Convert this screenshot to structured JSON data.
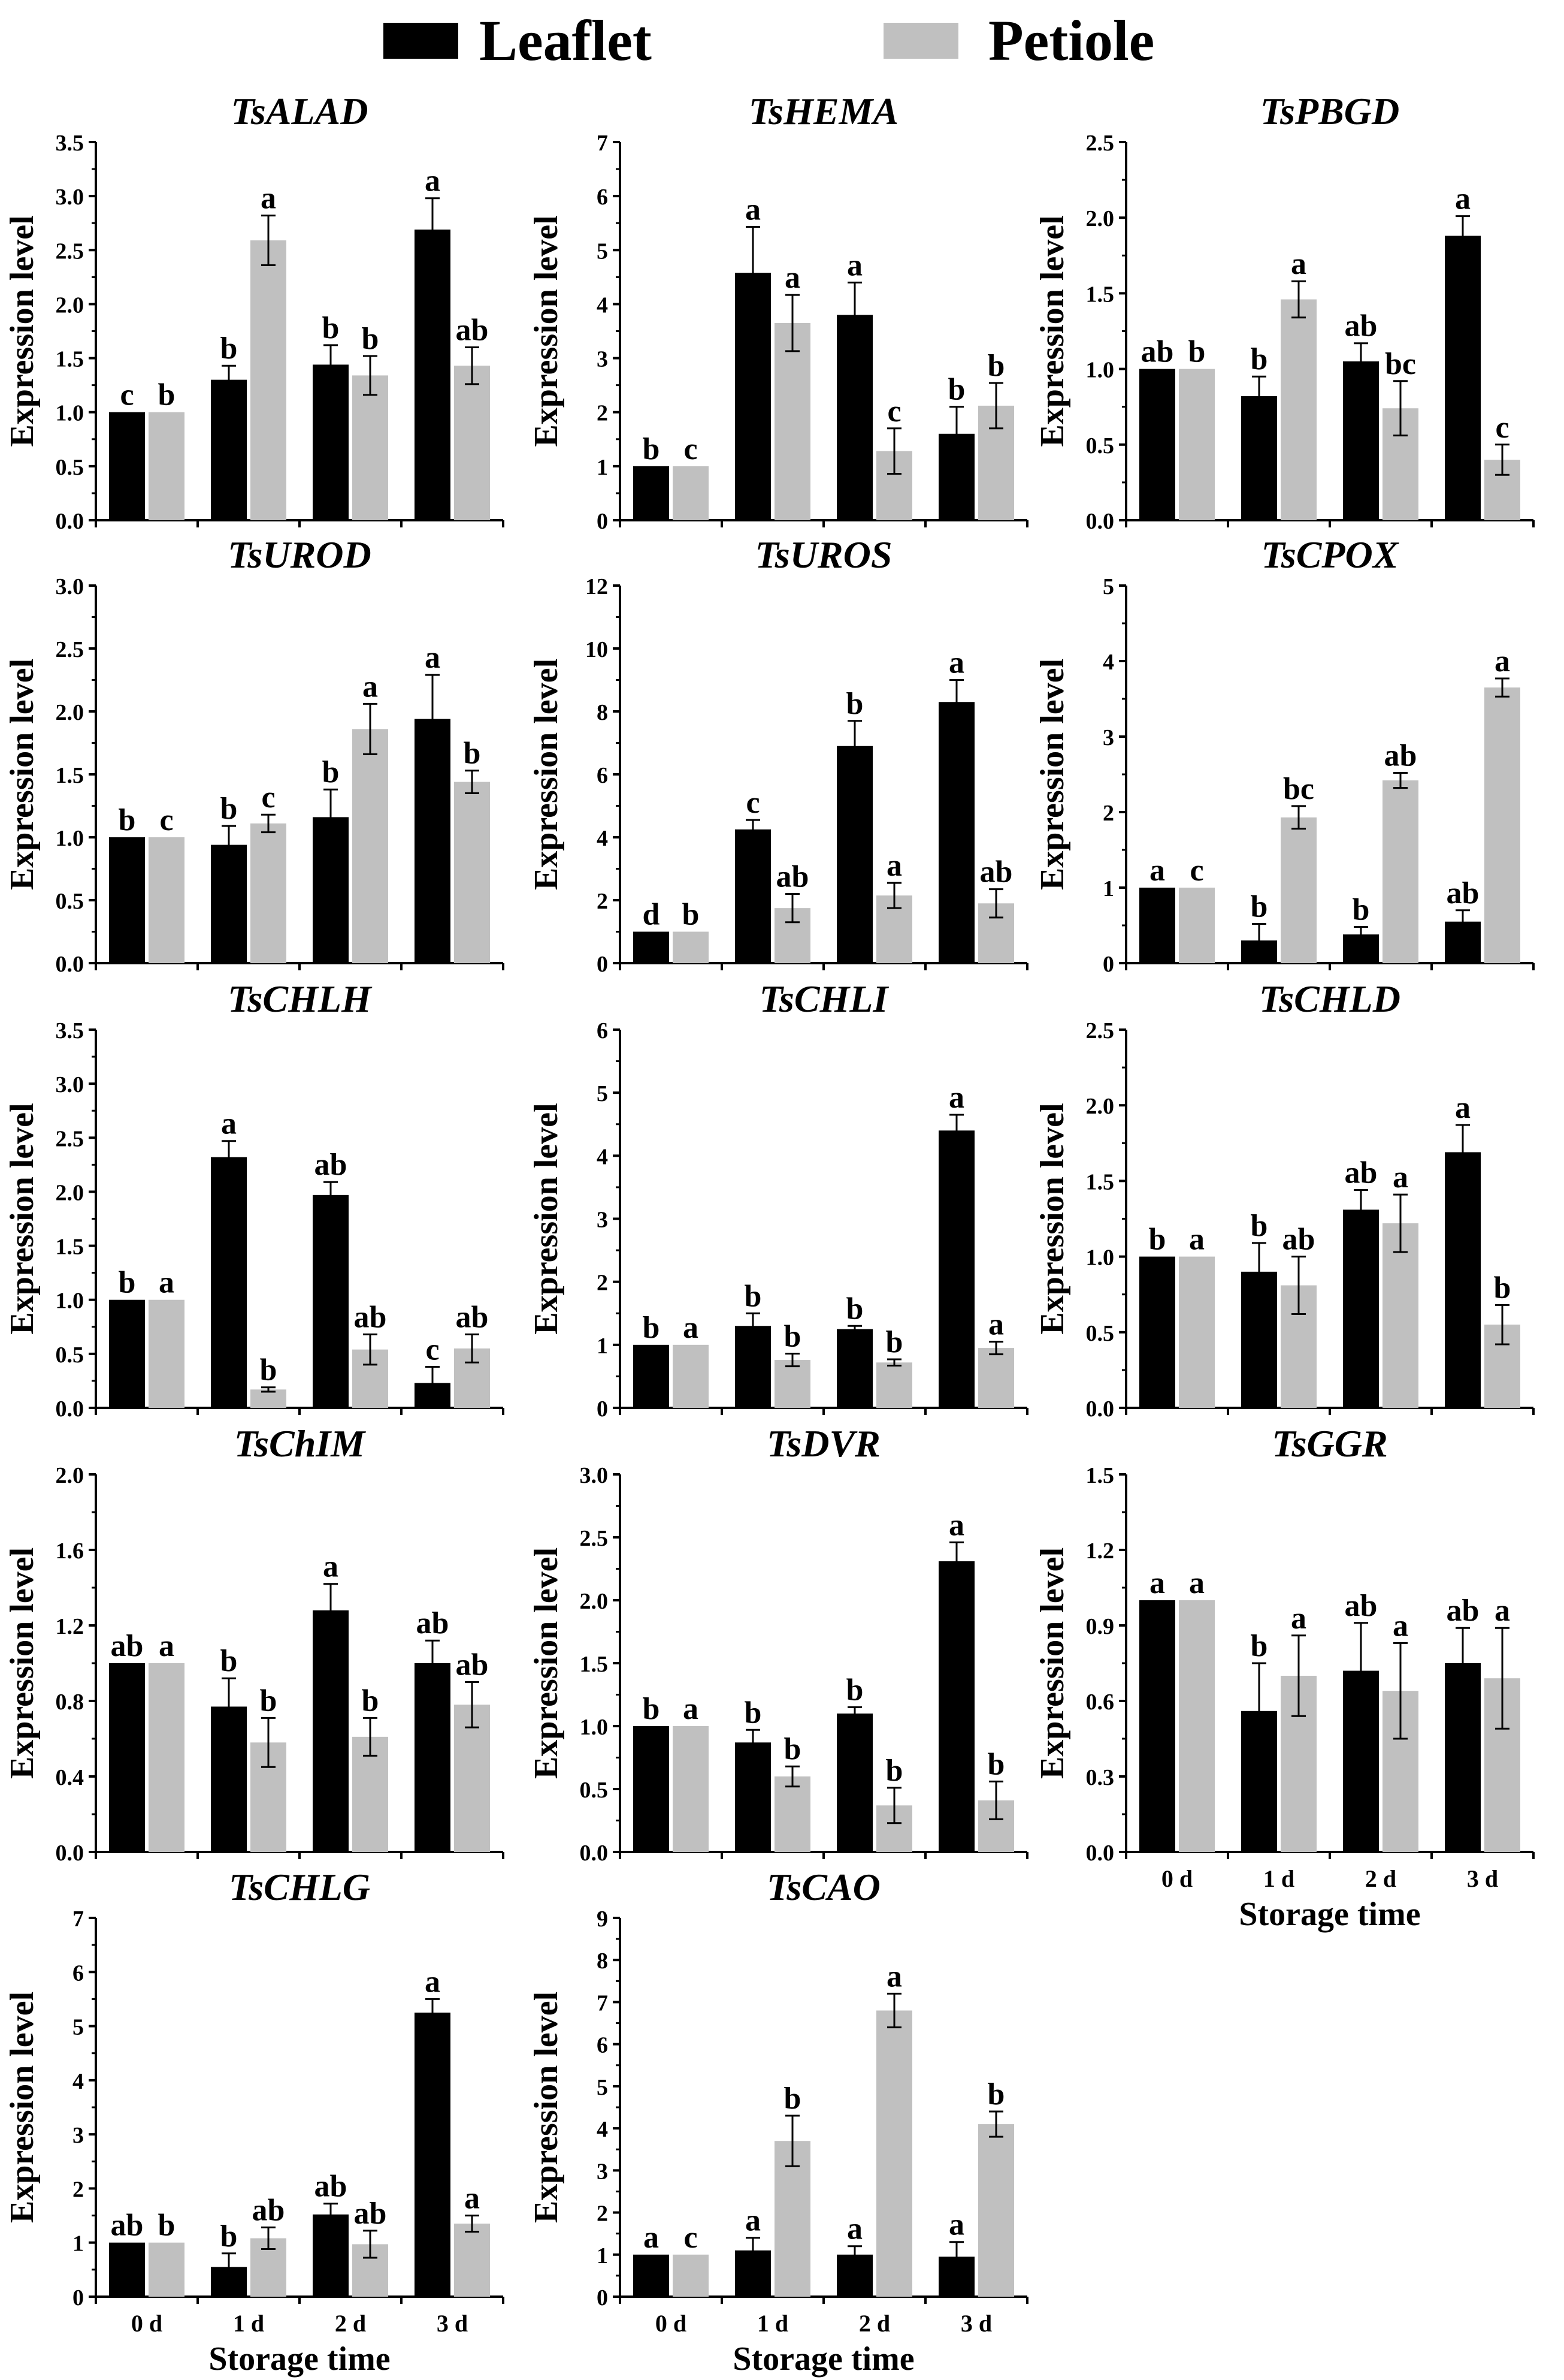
{
  "legend": {
    "items": [
      {
        "label": "Leaflet",
        "color": "#000000"
      },
      {
        "label": "Petiole",
        "color": "#c0c0c0"
      }
    ]
  },
  "colors": {
    "leaflet": "#000000",
    "petiole": "#c0c0c0",
    "axis": "#000000"
  },
  "chart_data": [
    {
      "type": "bar",
      "title": "TsALAD",
      "ylabel": "Expression level",
      "xlabel": "",
      "ylim": [
        0,
        3.5
      ],
      "ticks": [
        "0.0",
        "0.5",
        "1.0",
        "1.5",
        "2.0",
        "2.5",
        "3.0",
        "3.5"
      ],
      "categories": [
        "0 d",
        "1 d",
        "2 d",
        "3 d"
      ],
      "series": [
        {
          "name": "Leaflet",
          "values": [
            1.0,
            1.3,
            1.44,
            2.69
          ],
          "errors": [
            0,
            0.13,
            0.18,
            0.29
          ],
          "letters": [
            "c",
            "b",
            "b",
            "a"
          ]
        },
        {
          "name": "Petiole",
          "values": [
            1.0,
            2.59,
            1.34,
            1.43
          ],
          "errors": [
            0,
            0.23,
            0.18,
            0.17
          ],
          "letters": [
            "b",
            "a",
            "b",
            "ab"
          ]
        }
      ]
    },
    {
      "type": "bar",
      "title": "TsHEMA",
      "ylabel": "Expression level",
      "xlabel": "",
      "ylim": [
        0,
        7
      ],
      "ticks": [
        "0",
        "1",
        "2",
        "3",
        "4",
        "5",
        "6",
        "7"
      ],
      "categories": [
        "0 d",
        "1 d",
        "2 d",
        "3 d"
      ],
      "series": [
        {
          "name": "Leaflet",
          "values": [
            1.0,
            4.58,
            3.8,
            1.6
          ],
          "errors": [
            0,
            0.85,
            0.6,
            0.5
          ],
          "letters": [
            "b",
            "a",
            "a",
            "b"
          ]
        },
        {
          "name": "Petiole",
          "values": [
            1.0,
            3.65,
            1.28,
            2.12
          ],
          "errors": [
            0,
            0.52,
            0.42,
            0.42
          ],
          "letters": [
            "c",
            "a",
            "c",
            "b"
          ]
        }
      ]
    },
    {
      "type": "bar",
      "title": "TsPBGD",
      "ylabel": "Expression level",
      "xlabel": "",
      "ylim": [
        0,
        2.5
      ],
      "ticks": [
        "0.0",
        "0.5",
        "1.0",
        "1.5",
        "2.0",
        "2.5"
      ],
      "categories": [
        "0 d",
        "1 d",
        "2 d",
        "3 d"
      ],
      "series": [
        {
          "name": "Leaflet",
          "values": [
            1.0,
            0.82,
            1.05,
            1.88
          ],
          "errors": [
            0,
            0.13,
            0.12,
            0.13
          ],
          "letters": [
            "ab",
            "b",
            "ab",
            "a"
          ]
        },
        {
          "name": "Petiole",
          "values": [
            1.0,
            1.46,
            0.74,
            0.4
          ],
          "errors": [
            0,
            0.12,
            0.18,
            0.1
          ],
          "letters": [
            "b",
            "a",
            "bc",
            "c"
          ]
        }
      ]
    },
    {
      "type": "bar",
      "title": "TsUROD",
      "ylabel": "Expression level",
      "xlabel": "",
      "ylim": [
        0,
        3.0
      ],
      "ticks": [
        "0.0",
        "0.5",
        "1.0",
        "1.5",
        "2.0",
        "2.5",
        "3.0"
      ],
      "categories": [
        "0 d",
        "1 d",
        "2 d",
        "3 d"
      ],
      "series": [
        {
          "name": "Leaflet",
          "values": [
            1.0,
            0.94,
            1.16,
            1.94
          ],
          "errors": [
            0,
            0.15,
            0.22,
            0.35
          ],
          "letters": [
            "b",
            "b",
            "b",
            "a"
          ]
        },
        {
          "name": "Petiole",
          "values": [
            1.0,
            1.11,
            1.86,
            1.44
          ],
          "errors": [
            0,
            0.07,
            0.2,
            0.09
          ],
          "letters": [
            "c",
            "c",
            "a",
            "b"
          ]
        }
      ]
    },
    {
      "type": "bar",
      "title": "TsUROS",
      "ylabel": "Expression level",
      "xlabel": "",
      "ylim": [
        0,
        12
      ],
      "ticks": [
        "0",
        "2",
        "4",
        "6",
        "8",
        "10",
        "12"
      ],
      "categories": [
        "0 d",
        "1 d",
        "2 d",
        "3 d"
      ],
      "series": [
        {
          "name": "Leaflet",
          "values": [
            1.0,
            4.25,
            6.9,
            8.3
          ],
          "errors": [
            0,
            0.3,
            0.8,
            0.7
          ],
          "letters": [
            "d",
            "c",
            "b",
            "a"
          ]
        },
        {
          "name": "Petiole",
          "values": [
            1.0,
            1.75,
            2.15,
            1.9
          ],
          "errors": [
            0,
            0.45,
            0.4,
            0.45
          ],
          "letters": [
            "b",
            "ab",
            "a",
            "ab"
          ]
        }
      ]
    },
    {
      "type": "bar",
      "title": "TsCPOX",
      "ylabel": "Expression level",
      "xlabel": "",
      "ylim": [
        0,
        5
      ],
      "ticks": [
        "0",
        "1",
        "2",
        "3",
        "4",
        "5"
      ],
      "categories": [
        "0 d",
        "1 d",
        "2 d",
        "3 d"
      ],
      "series": [
        {
          "name": "Leaflet",
          "values": [
            1.0,
            0.3,
            0.38,
            0.55
          ],
          "errors": [
            0,
            0.22,
            0.1,
            0.15
          ],
          "letters": [
            "a",
            "b",
            "b",
            "ab"
          ]
        },
        {
          "name": "Petiole",
          "values": [
            1.0,
            1.93,
            2.42,
            3.65
          ],
          "errors": [
            0,
            0.15,
            0.1,
            0.12
          ],
          "letters": [
            "c",
            "bc",
            "ab",
            "a"
          ]
        }
      ]
    },
    {
      "type": "bar",
      "title": "TsCHLH",
      "ylabel": "Expression level",
      "xlabel": "",
      "ylim": [
        0,
        3.5
      ],
      "ticks": [
        "0.0",
        "0.5",
        "1.0",
        "1.5",
        "2.0",
        "2.5",
        "3.0",
        "3.5"
      ],
      "categories": [
        "0 d",
        "1 d",
        "2 d",
        "3 d"
      ],
      "series": [
        {
          "name": "Leaflet",
          "values": [
            1.0,
            2.32,
            1.97,
            0.23
          ],
          "errors": [
            0,
            0.15,
            0.12,
            0.15
          ],
          "letters": [
            "b",
            "a",
            "ab",
            "c"
          ]
        },
        {
          "name": "Petiole",
          "values": [
            1.0,
            0.17,
            0.54,
            0.55
          ],
          "errors": [
            0,
            0.02,
            0.14,
            0.13
          ],
          "letters": [
            "a",
            "b",
            "ab",
            "ab"
          ]
        }
      ]
    },
    {
      "type": "bar",
      "title": "TsCHLI",
      "ylabel": "Expression level",
      "xlabel": "",
      "ylim": [
        0,
        6
      ],
      "ticks": [
        "0",
        "1",
        "2",
        "3",
        "4",
        "5",
        "6"
      ],
      "categories": [
        "0 d",
        "1 d",
        "2 d",
        "3 d"
      ],
      "series": [
        {
          "name": "Leaflet",
          "values": [
            1.0,
            1.3,
            1.25,
            4.4
          ],
          "errors": [
            0,
            0.2,
            0.05,
            0.25
          ],
          "letters": [
            "b",
            "b",
            "b",
            "a"
          ]
        },
        {
          "name": "Petiole",
          "values": [
            1.0,
            0.76,
            0.72,
            0.95
          ],
          "errors": [
            0,
            0.1,
            0.05,
            0.1
          ],
          "letters": [
            "a",
            "b",
            "b",
            "a"
          ]
        }
      ]
    },
    {
      "type": "bar",
      "title": "TsCHLD",
      "ylabel": "Expression level",
      "xlabel": "",
      "ylim": [
        0,
        2.5
      ],
      "ticks": [
        "0.0",
        "0.5",
        "1.0",
        "1.5",
        "2.0",
        "2.5"
      ],
      "categories": [
        "0 d",
        "1 d",
        "2 d",
        "3 d"
      ],
      "series": [
        {
          "name": "Leaflet",
          "values": [
            1.0,
            0.9,
            1.31,
            1.69
          ],
          "errors": [
            0,
            0.19,
            0.13,
            0.18
          ],
          "letters": [
            "b",
            "b",
            "ab",
            "a"
          ]
        },
        {
          "name": "Petiole",
          "values": [
            1.0,
            0.81,
            1.22,
            0.55
          ],
          "errors": [
            0,
            0.19,
            0.19,
            0.13
          ],
          "letters": [
            "a",
            "ab",
            "a",
            "b"
          ]
        }
      ]
    },
    {
      "type": "bar",
      "title": "TsChIM",
      "ylabel": "Expression level",
      "xlabel": "",
      "ylim": [
        0,
        2.0
      ],
      "ticks": [
        "0.0",
        "0.4",
        "0.8",
        "1.2",
        "1.6",
        "2.0"
      ],
      "categories": [
        "0 d",
        "1 d",
        "2 d",
        "3 d"
      ],
      "series": [
        {
          "name": "Leaflet",
          "values": [
            1.0,
            0.77,
            1.28,
            1.0
          ],
          "errors": [
            0,
            0.15,
            0.14,
            0.12
          ],
          "letters": [
            "ab",
            "b",
            "a",
            "ab"
          ]
        },
        {
          "name": "Petiole",
          "values": [
            1.0,
            0.58,
            0.61,
            0.78
          ],
          "errors": [
            0,
            0.13,
            0.1,
            0.12
          ],
          "letters": [
            "a",
            "b",
            "b",
            "ab"
          ]
        }
      ]
    },
    {
      "type": "bar",
      "title": "TsDVR",
      "ylabel": "Expression level",
      "xlabel": "",
      "ylim": [
        0,
        3.0
      ],
      "ticks": [
        "0.0",
        "0.5",
        "1.0",
        "1.5",
        "2.0",
        "2.5",
        "3.0"
      ],
      "categories": [
        "0 d",
        "1 d",
        "2 d",
        "3 d"
      ],
      "series": [
        {
          "name": "Leaflet",
          "values": [
            1.0,
            0.87,
            1.1,
            2.31
          ],
          "errors": [
            0,
            0.1,
            0.05,
            0.15
          ],
          "letters": [
            "b",
            "b",
            "b",
            "a"
          ]
        },
        {
          "name": "Petiole",
          "values": [
            1.0,
            0.6,
            0.37,
            0.41
          ],
          "errors": [
            0,
            0.08,
            0.14,
            0.15
          ],
          "letters": [
            "a",
            "b",
            "b",
            "b"
          ]
        }
      ]
    },
    {
      "type": "bar",
      "title": "TsGGR",
      "ylabel": "Expression level",
      "xlabel": "Storage time",
      "ylim": [
        0,
        1.5
      ],
      "ticks": [
        "0.0",
        "0.3",
        "0.6",
        "0.9",
        "1.2",
        "1.5"
      ],
      "categories": [
        "0 d",
        "1 d",
        "2 d",
        "3 d"
      ],
      "series": [
        {
          "name": "Leaflet",
          "values": [
            1.0,
            0.56,
            0.72,
            0.75
          ],
          "errors": [
            0,
            0.19,
            0.19,
            0.14
          ],
          "letters": [
            "a",
            "b",
            "ab",
            "ab"
          ]
        },
        {
          "name": "Petiole",
          "values": [
            1.0,
            0.7,
            0.64,
            0.69
          ],
          "errors": [
            0,
            0.16,
            0.19,
            0.2
          ],
          "letters": [
            "a",
            "a",
            "a",
            "a"
          ]
        }
      ]
    },
    {
      "type": "bar",
      "title": "TsCHLG",
      "ylabel": "Expression level",
      "xlabel": "Storage time",
      "ylim": [
        0,
        7
      ],
      "ticks": [
        "0",
        "1",
        "2",
        "3",
        "4",
        "5",
        "6",
        "7"
      ],
      "categories": [
        "0 d",
        "1 d",
        "2 d",
        "3 d"
      ],
      "series": [
        {
          "name": "Leaflet",
          "values": [
            1.0,
            0.55,
            1.52,
            5.25
          ],
          "errors": [
            0,
            0.25,
            0.2,
            0.25
          ],
          "letters": [
            "ab",
            "b",
            "ab",
            "a"
          ]
        },
        {
          "name": "Petiole",
          "values": [
            1.0,
            1.08,
            0.97,
            1.35
          ],
          "errors": [
            0,
            0.2,
            0.25,
            0.15
          ],
          "letters": [
            "b",
            "ab",
            "ab",
            "a"
          ]
        }
      ]
    },
    {
      "type": "bar",
      "title": "TsCAO",
      "ylabel": "Expression level",
      "xlabel": "Storage time",
      "ylim": [
        0,
        9
      ],
      "ticks": [
        "0",
        "1",
        "2",
        "3",
        "4",
        "5",
        "6",
        "7",
        "8",
        "9"
      ],
      "categories": [
        "0 d",
        "1 d",
        "2 d",
        "3 d"
      ],
      "series": [
        {
          "name": "Leaflet",
          "values": [
            1.0,
            1.1,
            1.0,
            0.95
          ],
          "errors": [
            0,
            0.3,
            0.2,
            0.35
          ],
          "letters": [
            "a",
            "a",
            "a",
            "a"
          ]
        },
        {
          "name": "Petiole",
          "values": [
            1.0,
            3.7,
            6.8,
            4.1
          ],
          "errors": [
            0,
            0.6,
            0.4,
            0.3
          ],
          "letters": [
            "c",
            "b",
            "a",
            "b"
          ]
        }
      ]
    }
  ]
}
